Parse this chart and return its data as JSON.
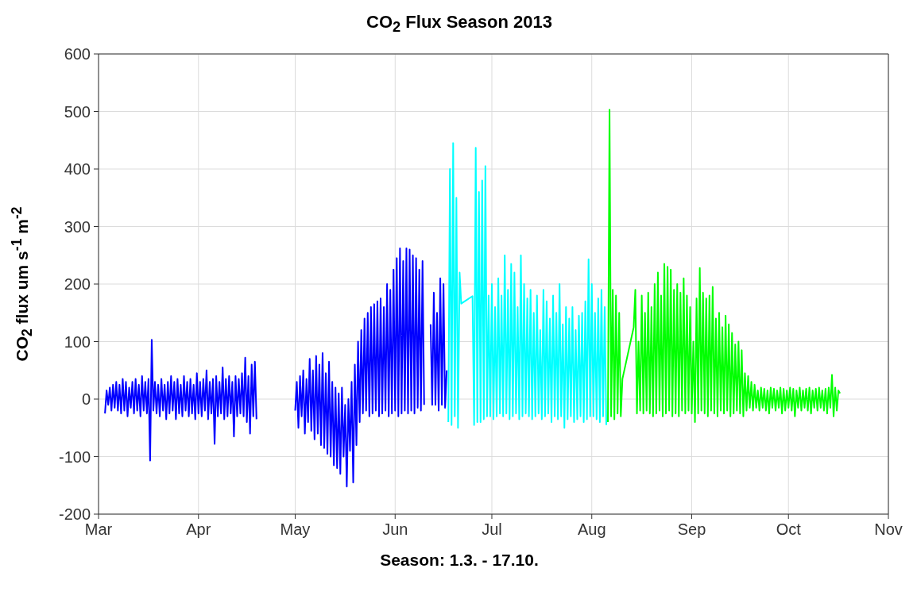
{
  "chart_data": {
    "type": "line",
    "title": "CO$_{2}$ Flux Season 2013",
    "xlabel": "Season: 1.3. - 17.10.",
    "ylabel": "CO$_{2}$ flux um s$^{-1}$ m$^{-2}$",
    "xlim": [
      "2013-03-01",
      "2013-11-01"
    ],
    "xticks": [
      {
        "value": "2013-03-01",
        "label": "Mar"
      },
      {
        "value": "2013-04-01",
        "label": "Apr"
      },
      {
        "value": "2013-05-01",
        "label": "May"
      },
      {
        "value": "2013-06-01",
        "label": "Jun"
      },
      {
        "value": "2013-07-01",
        "label": "Jul"
      },
      {
        "value": "2013-08-01",
        "label": "Aug"
      },
      {
        "value": "2013-09-01",
        "label": "Sep"
      },
      {
        "value": "2013-10-01",
        "label": "Oct"
      },
      {
        "value": "2013-11-01",
        "label": "Nov"
      }
    ],
    "ylim": [
      -200,
      600
    ],
    "yticks": [
      -200,
      -100,
      0,
      100,
      200,
      300,
      400,
      500,
      600
    ],
    "grid": true,
    "series": [
      {
        "color": "#0000ff",
        "x": [
          "2013-03-03T00:00",
          "2013-03-03T12:00",
          "2013-03-04T00:00",
          "2013-03-04T12:00",
          "2013-03-05T00:00",
          "2013-03-05T12:00",
          "2013-03-06T00:00",
          "2013-03-06T12:00",
          "2013-03-07T00:00",
          "2013-03-07T12:00",
          "2013-03-08T00:00",
          "2013-03-08T12:00",
          "2013-03-09T00:00",
          "2013-03-09T12:00",
          "2013-03-10T00:00",
          "2013-03-10T12:00",
          "2013-03-11T00:00",
          "2013-03-11T12:00",
          "2013-03-12T00:00",
          "2013-03-12T12:00",
          "2013-03-13T00:00",
          "2013-03-13T12:00",
          "2013-03-14T00:00",
          "2013-03-14T12:00",
          "2013-03-15T00:00",
          "2013-03-15T12:00",
          "2013-03-16T00:00",
          "2013-03-16T12:00",
          "2013-03-17T00:00",
          "2013-03-17T12:00",
          "2013-03-18T00:00",
          "2013-03-18T12:00",
          "2013-03-19T00:00",
          "2013-03-19T12:00",
          "2013-03-20T00:00",
          "2013-03-20T12:00",
          "2013-03-21T00:00",
          "2013-03-21T12:00",
          "2013-03-22T00:00",
          "2013-03-22T12:00",
          "2013-03-23T00:00",
          "2013-03-23T12:00",
          "2013-03-24T00:00",
          "2013-03-24T12:00",
          "2013-03-25T00:00",
          "2013-03-25T12:00",
          "2013-03-26T00:00",
          "2013-03-26T12:00",
          "2013-03-27T00:00",
          "2013-03-27T12:00",
          "2013-03-28T00:00",
          "2013-03-28T12:00",
          "2013-03-29T00:00",
          "2013-03-29T12:00",
          "2013-03-30T00:00",
          "2013-03-30T12:00",
          "2013-03-31T00:00",
          "2013-03-31T12:00",
          "2013-04-01T00:00",
          "2013-04-01T12:00",
          "2013-04-02T00:00",
          "2013-04-02T12:00",
          "2013-04-03T00:00",
          "2013-04-03T12:00",
          "2013-04-04T00:00",
          "2013-04-04T12:00",
          "2013-04-05T00:00",
          "2013-04-05T12:00",
          "2013-04-06T00:00",
          "2013-04-06T12:00",
          "2013-04-07T00:00",
          "2013-04-07T12:00",
          "2013-04-08T00:00",
          "2013-04-08T12:00",
          "2013-04-09T00:00",
          "2013-04-09T12:00",
          "2013-04-10T00:00",
          "2013-04-10T12:00",
          "2013-04-11T00:00",
          "2013-04-11T12:00",
          "2013-04-12T00:00",
          "2013-04-12T12:00",
          "2013-04-13T00:00",
          "2013-04-13T12:00",
          "2013-04-14T00:00",
          "2013-04-14T12:00",
          "2013-04-15T00:00",
          "2013-04-15T12:00",
          "2013-04-16T00:00",
          "2013-04-16T12:00",
          "2013-04-17T00:00",
          "2013-04-17T12:00",
          "2013-04-18T00:00",
          "2013-04-18T12:00",
          "2013-04-19T00:00",
          "2013-04-25T00:00",
          "2013-05-01T00:00",
          "2013-05-01T12:00",
          "2013-05-02T00:00",
          "2013-05-02T12:00",
          "2013-05-03T00:00",
          "2013-05-03T12:00",
          "2013-05-04T00:00",
          "2013-05-04T12:00",
          "2013-05-05T00:00",
          "2013-05-05T12:00",
          "2013-05-06T00:00",
          "2013-05-06T12:00",
          "2013-05-07T00:00",
          "2013-05-07T12:00",
          "2013-05-08T00:00",
          "2013-05-08T12:00",
          "2013-05-09T00:00",
          "2013-05-09T12:00",
          "2013-05-10T00:00",
          "2013-05-10T12:00",
          "2013-05-11T00:00",
          "2013-05-11T12:00",
          "2013-05-12T00:00",
          "2013-05-12T12:00",
          "2013-05-13T00:00",
          "2013-05-13T12:00",
          "2013-05-14T00:00",
          "2013-05-14T12:00",
          "2013-05-15T00:00",
          "2013-05-15T12:00",
          "2013-05-16T00:00",
          "2013-05-16T12:00",
          "2013-05-17T00:00",
          "2013-05-17T12:00",
          "2013-05-18T00:00",
          "2013-05-18T12:00",
          "2013-05-19T00:00",
          "2013-05-19T12:00",
          "2013-05-20T00:00",
          "2013-05-20T12:00",
          "2013-05-21T00:00",
          "2013-05-21T12:00",
          "2013-05-22T00:00",
          "2013-05-22T12:00",
          "2013-05-23T00:00",
          "2013-05-23T12:00",
          "2013-05-24T00:00",
          "2013-05-24T12:00",
          "2013-05-25T00:00",
          "2013-05-25T12:00",
          "2013-05-26T00:00",
          "2013-05-26T12:00",
          "2013-05-27T00:00",
          "2013-05-27T12:00",
          "2013-05-28T00:00",
          "2013-05-28T12:00",
          "2013-05-29T00:00",
          "2013-05-29T12:00",
          "2013-05-30T00:00",
          "2013-05-30T12:00",
          "2013-05-31T00:00",
          "2013-05-31T12:00",
          "2013-06-01T00:00",
          "2013-06-01T12:00",
          "2013-06-02T00:00",
          "2013-06-02T12:00",
          "2013-06-03T00:00",
          "2013-06-03T12:00",
          "2013-06-04T00:00",
          "2013-06-04T12:00",
          "2013-06-05T00:00",
          "2013-06-05T12:00",
          "2013-06-06T00:00",
          "2013-06-06T12:00",
          "2013-06-07T00:00",
          "2013-06-07T12:00",
          "2013-06-08T00:00",
          "2013-06-08T12:00",
          "2013-06-09T00:00",
          "2013-06-09T12:00",
          "2013-06-10T00:00",
          "2013-06-11T00:00",
          "2013-06-12T00:00",
          "2013-06-12T12:00",
          "2013-06-13T00:00",
          "2013-06-13T12:00",
          "2013-06-14T00:00",
          "2013-06-14T12:00",
          "2013-06-15T00:00",
          "2013-06-15T12:00",
          "2013-06-16T00:00",
          "2013-06-16T12:00",
          "2013-06-17T00:00"
        ],
        "values": [
          -25,
          15,
          -10,
          20,
          -20,
          25,
          -15,
          30,
          -20,
          25,
          -25,
          35,
          -20,
          30,
          -30,
          20,
          -15,
          30,
          -25,
          35,
          -20,
          25,
          -30,
          40,
          -20,
          30,
          -25,
          35,
          -107,
          103,
          -20,
          30,
          -25,
          25,
          -30,
          35,
          -20,
          25,
          -35,
          30,
          -25,
          40,
          -20,
          30,
          -35,
          35,
          -25,
          25,
          -30,
          40,
          -20,
          30,
          -30,
          35,
          -25,
          25,
          -35,
          45,
          -25,
          30,
          -30,
          35,
          -20,
          50,
          -35,
          30,
          -25,
          35,
          -78,
          40,
          -30,
          30,
          -25,
          55,
          -35,
          35,
          -30,
          40,
          -25,
          30,
          -65,
          40,
          -30,
          35,
          -25,
          45,
          -30,
          72,
          -40,
          40,
          -60,
          60,
          -30,
          65,
          -35,
          null,
          -20,
          30,
          -50,
          40,
          -30,
          50,
          -60,
          35,
          -40,
          70,
          -55,
          50,
          -70,
          75,
          -60,
          60,
          -80,
          80,
          -85,
          45,
          -95,
          65,
          -100,
          30,
          -115,
          20,
          -120,
          10,
          -130,
          20,
          -100,
          -10,
          -152,
          0,
          -90,
          30,
          -145,
          60,
          -80,
          100,
          -40,
          120,
          -25,
          140,
          -20,
          150,
          -30,
          160,
          -25,
          165,
          -20,
          170,
          -30,
          175,
          -25,
          160,
          -20,
          200,
          -30,
          190,
          -25,
          225,
          -20,
          245,
          -30,
          262,
          -25,
          240,
          -20,
          262,
          -25,
          260,
          -20,
          250,
          -25,
          245,
          -15,
          225,
          -20,
          240,
          -10,
          null,
          130,
          -10,
          185,
          -10,
          150,
          -20,
          210,
          -10,
          200,
          -15,
          50
        ]
      },
      {
        "color": "#00ffff",
        "x": [
          "2013-06-17T12:00",
          "2013-06-18T00:00",
          "2013-06-18T12:00",
          "2013-06-19T00:00",
          "2013-06-19T12:00",
          "2013-06-20T00:00",
          "2013-06-20T12:00",
          "2013-06-21T00:00",
          "2013-06-21T12:00",
          "2013-06-25T00:00",
          "2013-06-25T12:00",
          "2013-06-26T00:00",
          "2013-06-26T12:00",
          "2013-06-27T00:00",
          "2013-06-27T12:00",
          "2013-06-28T00:00",
          "2013-06-28T12:00",
          "2013-06-29T00:00",
          "2013-06-29T12:00",
          "2013-06-30T00:00",
          "2013-06-30T12:00",
          "2013-07-01T00:00",
          "2013-07-01T12:00",
          "2013-07-02T00:00",
          "2013-07-02T12:00",
          "2013-07-03T00:00",
          "2013-07-03T12:00",
          "2013-07-04T00:00",
          "2013-07-04T12:00",
          "2013-07-05T00:00",
          "2013-07-05T12:00",
          "2013-07-06T00:00",
          "2013-07-06T12:00",
          "2013-07-07T00:00",
          "2013-07-07T12:00",
          "2013-07-08T00:00",
          "2013-07-08T12:00",
          "2013-07-09T00:00",
          "2013-07-09T12:00",
          "2013-07-10T00:00",
          "2013-07-10T12:00",
          "2013-07-11T00:00",
          "2013-07-11T12:00",
          "2013-07-12T00:00",
          "2013-07-12T12:00",
          "2013-07-13T00:00",
          "2013-07-13T12:00",
          "2013-07-14T00:00",
          "2013-07-14T12:00",
          "2013-07-15T00:00",
          "2013-07-15T12:00",
          "2013-07-16T00:00",
          "2013-07-16T12:00",
          "2013-07-17T00:00",
          "2013-07-17T12:00",
          "2013-07-18T00:00",
          "2013-07-18T12:00",
          "2013-07-19T00:00",
          "2013-07-19T12:00",
          "2013-07-20T00:00",
          "2013-07-20T12:00",
          "2013-07-21T00:00",
          "2013-07-21T12:00",
          "2013-07-22T00:00",
          "2013-07-22T12:00",
          "2013-07-23T00:00",
          "2013-07-23T12:00",
          "2013-07-24T00:00",
          "2013-07-24T12:00",
          "2013-07-25T00:00",
          "2013-07-25T12:00",
          "2013-07-26T00:00",
          "2013-07-26T12:00",
          "2013-07-27T00:00",
          "2013-07-27T12:00",
          "2013-07-28T00:00",
          "2013-07-28T12:00",
          "2013-07-29T00:00",
          "2013-07-29T12:00",
          "2013-07-30T00:00",
          "2013-07-30T12:00",
          "2013-07-31T00:00",
          "2013-07-31T12:00",
          "2013-08-01T00:00",
          "2013-08-01T12:00",
          "2013-08-02T00:00",
          "2013-08-02T12:00",
          "2013-08-03T00:00",
          "2013-08-03T12:00",
          "2013-08-04T00:00",
          "2013-08-04T12:00",
          "2013-08-05T00:00",
          "2013-08-05T12:00"
        ],
        "values": [
          -40,
          400,
          -45,
          445,
          -30,
          350,
          -50,
          220,
          166,
          179,
          -45,
          437,
          -40,
          360,
          -40,
          380,
          -35,
          405,
          -30,
          180,
          -30,
          200,
          -35,
          160,
          -30,
          210,
          -25,
          180,
          -30,
          250,
          -25,
          190,
          -35,
          235,
          -30,
          220,
          -25,
          160,
          -35,
          250,
          -30,
          200,
          -25,
          175,
          -30,
          190,
          -35,
          150,
          -30,
          180,
          -25,
          120,
          -35,
          190,
          -30,
          170,
          -25,
          140,
          -40,
          180,
          -30,
          150,
          -35,
          200,
          -30,
          130,
          -50,
          160,
          -35,
          140,
          -30,
          160,
          -40,
          120,
          -35,
          145,
          -30,
          150,
          -40,
          170,
          -35,
          243,
          -30,
          200,
          -30,
          150,
          -35,
          175,
          -40,
          190,
          -30,
          160,
          -45
        ]
      },
      {
        "color": "#00ff00",
        "x": [
          "2013-08-06T00:00",
          "2013-08-06T12:00",
          "2013-08-07T00:00",
          "2013-08-07T12:00",
          "2013-08-08T00:00",
          "2013-08-08T12:00",
          "2013-08-09T00:00",
          "2013-08-09T12:00",
          "2013-08-10T00:00",
          "2013-08-10T12:00",
          "2013-08-14T00:00",
          "2013-08-14T12:00",
          "2013-08-15T00:00",
          "2013-08-15T12:00",
          "2013-08-16T00:00",
          "2013-08-16T12:00",
          "2013-08-17T00:00",
          "2013-08-17T12:00",
          "2013-08-18T00:00",
          "2013-08-18T12:00",
          "2013-08-19T00:00",
          "2013-08-19T12:00",
          "2013-08-20T00:00",
          "2013-08-20T12:00",
          "2013-08-21T00:00",
          "2013-08-21T12:00",
          "2013-08-22T00:00",
          "2013-08-22T12:00",
          "2013-08-23T00:00",
          "2013-08-23T12:00",
          "2013-08-24T00:00",
          "2013-08-24T12:00",
          "2013-08-25T00:00",
          "2013-08-25T12:00",
          "2013-08-26T00:00",
          "2013-08-26T12:00",
          "2013-08-27T00:00",
          "2013-08-27T12:00",
          "2013-08-28T00:00",
          "2013-08-28T12:00",
          "2013-08-29T00:00",
          "2013-08-29T12:00",
          "2013-08-30T00:00",
          "2013-08-30T12:00",
          "2013-08-31T00:00",
          "2013-08-31T12:00",
          "2013-09-01T00:00",
          "2013-09-01T12:00",
          "2013-09-02T00:00",
          "2013-09-02T12:00",
          "2013-09-03T00:00",
          "2013-09-03T12:00",
          "2013-09-04T00:00",
          "2013-09-04T12:00",
          "2013-09-05T00:00",
          "2013-09-05T12:00",
          "2013-09-06T00:00",
          "2013-09-06T12:00",
          "2013-09-07T00:00",
          "2013-09-07T12:00",
          "2013-09-08T00:00",
          "2013-09-08T12:00",
          "2013-09-09T00:00",
          "2013-09-09T12:00",
          "2013-09-10T00:00",
          "2013-09-10T12:00",
          "2013-09-11T00:00",
          "2013-09-11T12:00",
          "2013-09-12T00:00",
          "2013-09-12T12:00",
          "2013-09-13T00:00",
          "2013-09-13T12:00",
          "2013-09-14T00:00",
          "2013-09-14T12:00",
          "2013-09-15T00:00",
          "2013-09-15T12:00",
          "2013-09-16T00:00",
          "2013-09-16T12:00",
          "2013-09-17T00:00",
          "2013-09-17T12:00",
          "2013-09-18T00:00",
          "2013-09-18T12:00",
          "2013-09-19T00:00",
          "2013-09-19T12:00",
          "2013-09-20T00:00",
          "2013-09-20T12:00",
          "2013-09-21T00:00",
          "2013-09-21T12:00",
          "2013-09-22T00:00",
          "2013-09-22T12:00",
          "2013-09-23T00:00",
          "2013-09-23T12:00",
          "2013-09-24T00:00",
          "2013-09-24T12:00",
          "2013-09-25T00:00",
          "2013-09-25T12:00",
          "2013-09-26T00:00",
          "2013-09-26T12:00",
          "2013-09-27T00:00",
          "2013-09-27T12:00",
          "2013-09-28T00:00",
          "2013-09-28T12:00",
          "2013-09-29T00:00",
          "2013-09-29T12:00",
          "2013-09-30T00:00",
          "2013-09-30T12:00",
          "2013-10-01T00:00",
          "2013-10-01T12:00",
          "2013-10-02T00:00",
          "2013-10-02T12:00",
          "2013-10-03T00:00",
          "2013-10-03T12:00",
          "2013-10-04T00:00",
          "2013-10-04T12:00",
          "2013-10-05T00:00",
          "2013-10-05T12:00",
          "2013-10-06T00:00",
          "2013-10-06T12:00",
          "2013-10-07T00:00",
          "2013-10-07T12:00",
          "2013-10-08T00:00",
          "2013-10-08T12:00",
          "2013-10-09T00:00",
          "2013-10-09T12:00",
          "2013-10-10T00:00",
          "2013-10-10T12:00",
          "2013-10-11T00:00",
          "2013-10-11T12:00",
          "2013-10-12T00:00",
          "2013-10-12T12:00",
          "2013-10-13T00:00",
          "2013-10-13T12:00",
          "2013-10-14T00:00",
          "2013-10-14T12:00",
          "2013-10-15T00:00",
          "2013-10-15T12:00",
          "2013-10-16T00:00",
          "2013-10-16T12:00",
          "2013-10-17T00:00"
        ],
        "values": [
          -40,
          503,
          -30,
          190,
          -35,
          180,
          -25,
          150,
          -30,
          35,
          125,
          190,
          -25,
          100,
          -20,
          180,
          -25,
          150,
          -20,
          185,
          -25,
          160,
          -30,
          200,
          -25,
          220,
          -20,
          180,
          -30,
          235,
          -25,
          230,
          -20,
          225,
          -30,
          190,
          -25,
          200,
          -30,
          185,
          -20,
          210,
          -25,
          180,
          -20,
          160,
          -25,
          100,
          -40,
          175,
          -25,
          228,
          -20,
          185,
          -25,
          175,
          -30,
          180,
          -20,
          195,
          -25,
          140,
          -30,
          150,
          -20,
          125,
          -25,
          145,
          -20,
          130,
          -30,
          115,
          -25,
          95,
          -20,
          100,
          -25,
          85,
          -30,
          45,
          -20,
          40,
          -15,
          30,
          -20,
          25,
          -15,
          15,
          -20,
          20,
          -15,
          18,
          -20,
          15,
          -25,
          20,
          -15,
          18,
          -20,
          15,
          -15,
          20,
          -25,
          18,
          -20,
          15,
          -15,
          20,
          -20,
          18,
          -30,
          15,
          -15,
          20,
          -20,
          15,
          -15,
          18,
          -20,
          20,
          -25,
          15,
          -15,
          18,
          -20,
          20,
          -15,
          15,
          -20,
          18,
          -25,
          20,
          -15,
          42,
          -30,
          20,
          -20,
          15,
          10
        ]
      }
    ]
  }
}
